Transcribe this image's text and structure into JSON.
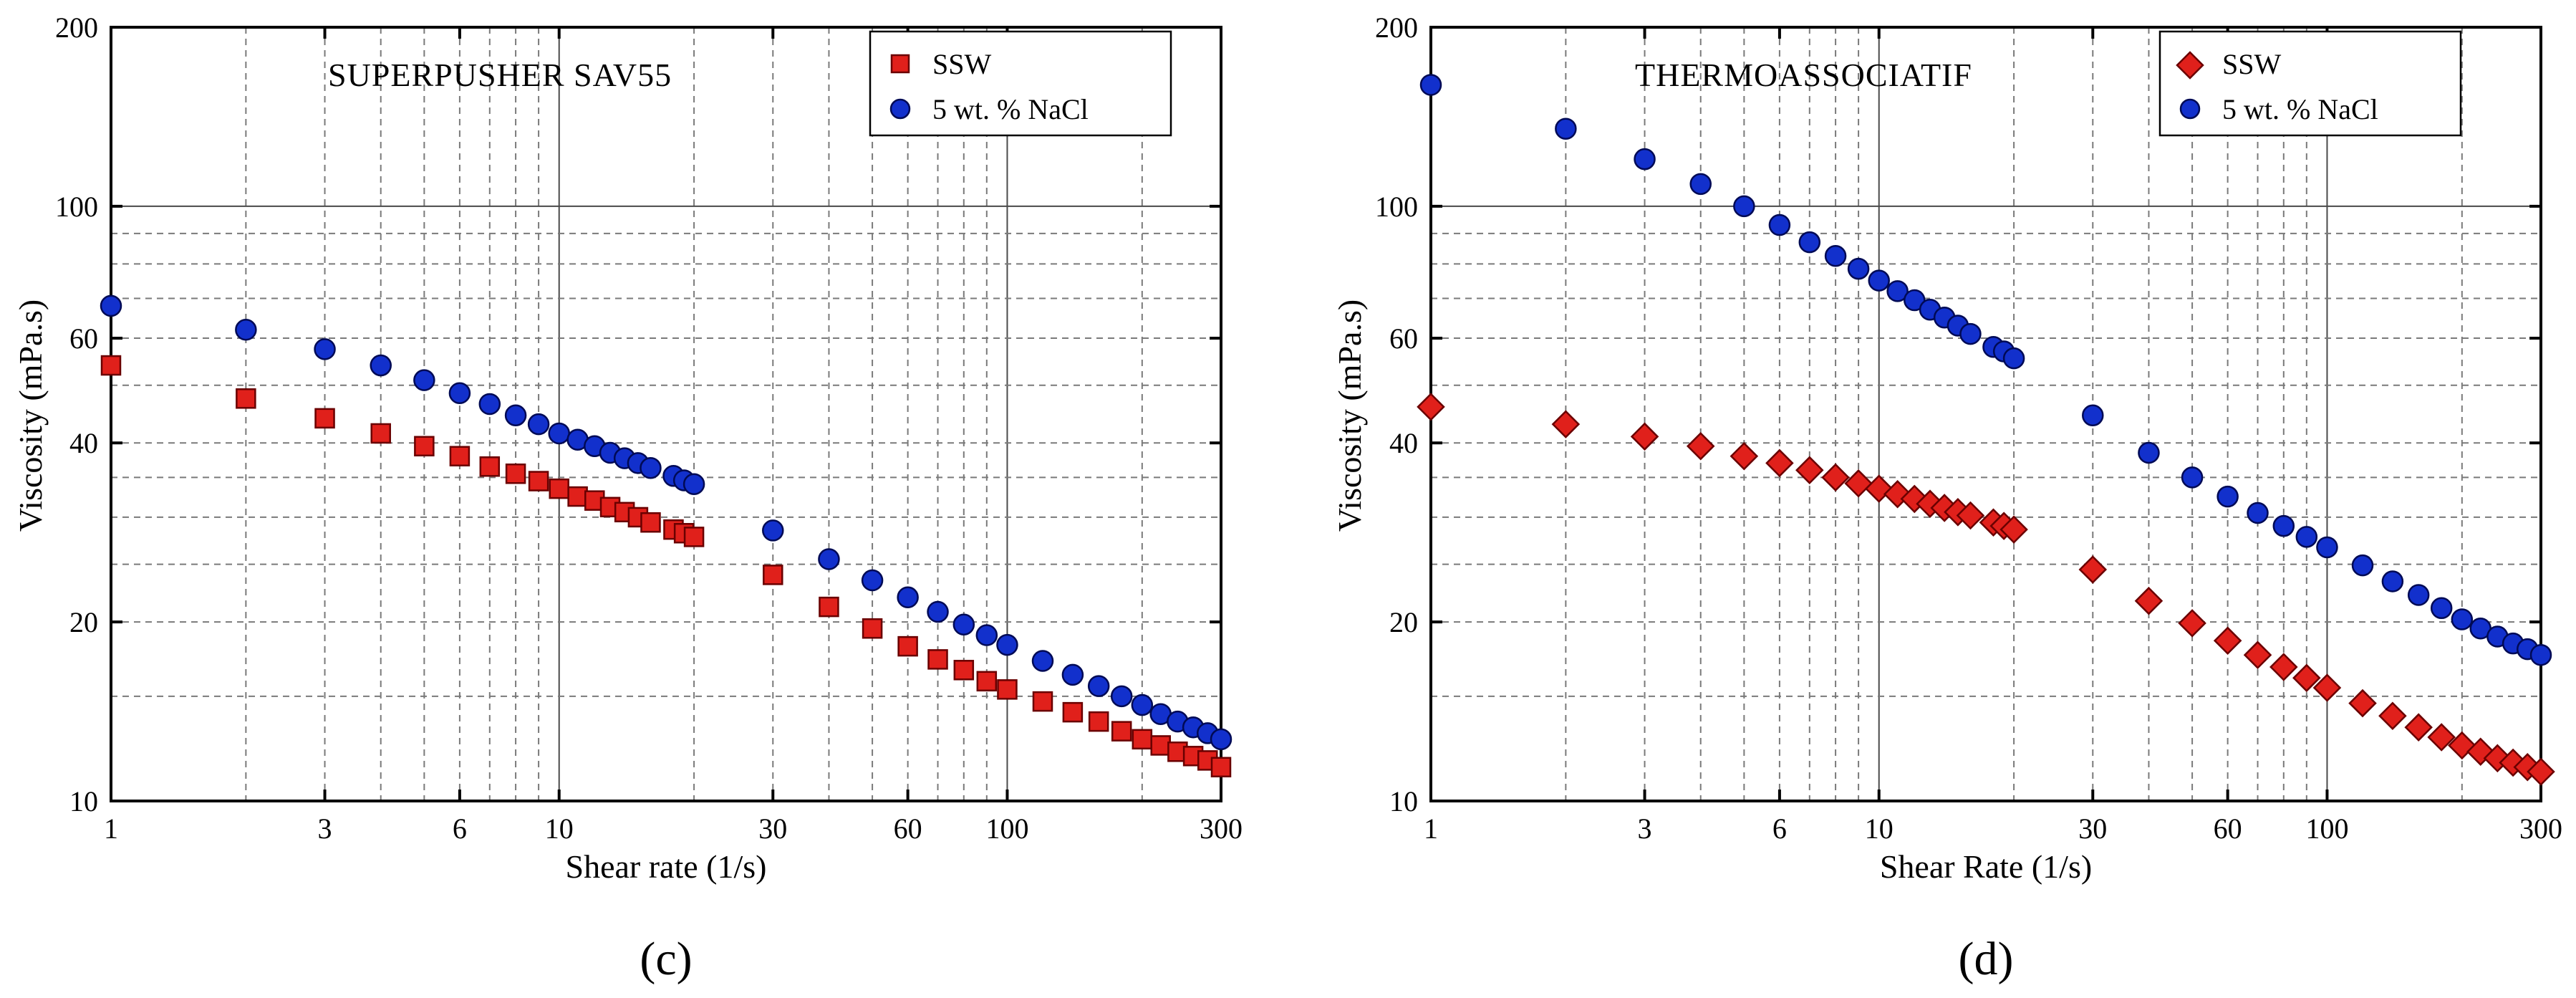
{
  "figure": {
    "panels": [
      {
        "panel_label": "(c)",
        "inner_title": "SUPERPUSHER SAV55"
      },
      {
        "panel_label": "(d)",
        "inner_title": "THERMOASSOCIATIF"
      }
    ]
  },
  "chart_data": [
    {
      "type": "scatter",
      "title": "SUPERPUSHER SAV55",
      "xlabel": "Shear rate (1/s)",
      "ylabel": "Viscosity (mPa.s)",
      "xscale": "log",
      "yscale": "log",
      "xlim": [
        1,
        300
      ],
      "ylim": [
        10,
        200
      ],
      "xticks": [
        1,
        3,
        6,
        10,
        30,
        60,
        100,
        300
      ],
      "xtick_labels": [
        "1",
        "3",
        "6",
        "10",
        "30",
        "60",
        "100",
        "300"
      ],
      "yticks": [
        10,
        20,
        40,
        60,
        100,
        200
      ],
      "ytick_labels": [
        "10",
        "20",
        "40",
        "60",
        "100",
        "200"
      ],
      "legend_position": "top-right",
      "series": [
        {
          "name": "SSW",
          "marker": "square",
          "color": "#e0201b",
          "x": [
            1,
            2,
            3,
            4,
            5,
            6,
            7,
            8,
            9,
            10,
            11,
            12,
            13,
            14,
            15,
            16,
            18,
            19,
            20,
            30,
            40,
            50,
            60,
            70,
            80,
            90,
            100,
            120,
            140,
            160,
            180,
            200,
            220,
            240,
            260,
            280,
            300
          ],
          "y": [
            54.0,
            47.5,
            44.0,
            41.5,
            39.5,
            38.0,
            36.5,
            35.5,
            34.5,
            33.5,
            32.5,
            32.0,
            31.2,
            30.6,
            30.0,
            29.4,
            28.6,
            28.2,
            27.8,
            24.0,
            21.2,
            19.5,
            18.2,
            17.3,
            16.6,
            15.9,
            15.4,
            14.7,
            14.1,
            13.6,
            13.1,
            12.7,
            12.4,
            12.1,
            11.9,
            11.7,
            11.4
          ]
        },
        {
          "name": "5 wt. % NaCl",
          "marker": "circle",
          "color": "#1230cc",
          "x": [
            1,
            2,
            3,
            4,
            5,
            6,
            7,
            8,
            9,
            10,
            11,
            12,
            13,
            14,
            15,
            16,
            18,
            19,
            20,
            30,
            40,
            50,
            60,
            70,
            80,
            90,
            100,
            120,
            140,
            160,
            180,
            200,
            220,
            240,
            260,
            280,
            300
          ],
          "y": [
            68.0,
            62.0,
            57.5,
            54.0,
            51.0,
            48.5,
            46.5,
            44.5,
            43.0,
            41.5,
            40.5,
            39.5,
            38.5,
            37.7,
            37.0,
            36.3,
            35.2,
            34.6,
            34.1,
            28.5,
            25.5,
            23.5,
            22.0,
            20.8,
            19.8,
            19.0,
            18.3,
            17.2,
            16.3,
            15.6,
            15.0,
            14.5,
            14.0,
            13.6,
            13.3,
            13.0,
            12.7
          ]
        }
      ]
    },
    {
      "type": "scatter",
      "title": "THERMOASSOCIATIF",
      "xlabel": "Shear Rate (1/s)",
      "ylabel": "Viscosity (mPa.s)",
      "xscale": "log",
      "yscale": "log",
      "xlim": [
        1,
        300
      ],
      "ylim": [
        10,
        200
      ],
      "xticks": [
        1,
        3,
        6,
        10,
        30,
        60,
        100,
        300
      ],
      "xtick_labels": [
        "1",
        "3",
        "6",
        "10",
        "30",
        "60",
        "100",
        "300"
      ],
      "yticks": [
        10,
        20,
        40,
        60,
        100,
        200
      ],
      "ytick_labels": [
        "10",
        "20",
        "40",
        "60",
        "100",
        "200"
      ],
      "legend_position": "top-right",
      "series": [
        {
          "name": "SSW",
          "marker": "diamond",
          "color": "#e0201b",
          "x": [
            1,
            2,
            3,
            4,
            5,
            6,
            7,
            8,
            9,
            10,
            11,
            12,
            13,
            14,
            15,
            16,
            18,
            19,
            20,
            30,
            40,
            50,
            60,
            70,
            80,
            90,
            100,
            120,
            140,
            160,
            180,
            200,
            220,
            240,
            260,
            280,
            300
          ],
          "y": [
            46.0,
            43.0,
            41.0,
            39.5,
            38.0,
            37.0,
            36.0,
            35.0,
            34.2,
            33.5,
            32.8,
            32.2,
            31.6,
            31.1,
            30.6,
            30.2,
            29.4,
            29.0,
            28.6,
            24.5,
            21.7,
            19.9,
            18.6,
            17.6,
            16.8,
            16.1,
            15.5,
            14.6,
            13.9,
            13.3,
            12.8,
            12.4,
            12.1,
            11.8,
            11.6,
            11.4,
            11.2
          ]
        },
        {
          "name": "5 wt. % NaCl",
          "marker": "circle",
          "color": "#1230cc",
          "x": [
            1,
            2,
            3,
            4,
            5,
            6,
            7,
            8,
            9,
            10,
            11,
            12,
            13,
            14,
            15,
            16,
            18,
            19,
            20,
            30,
            40,
            50,
            60,
            70,
            80,
            90,
            100,
            120,
            140,
            160,
            180,
            200,
            220,
            240,
            260,
            280,
            300
          ],
          "y": [
            160.0,
            135.0,
            120.0,
            109.0,
            100.0,
            93.0,
            87.0,
            82.5,
            78.5,
            75.0,
            72.0,
            69.5,
            67.0,
            65.0,
            63.0,
            61.0,
            58.0,
            57.0,
            55.5,
            44.5,
            38.5,
            35.0,
            32.5,
            30.5,
            29.0,
            27.8,
            26.7,
            24.9,
            23.4,
            22.2,
            21.1,
            20.2,
            19.5,
            18.9,
            18.4,
            18.0,
            17.6
          ]
        }
      ]
    }
  ]
}
